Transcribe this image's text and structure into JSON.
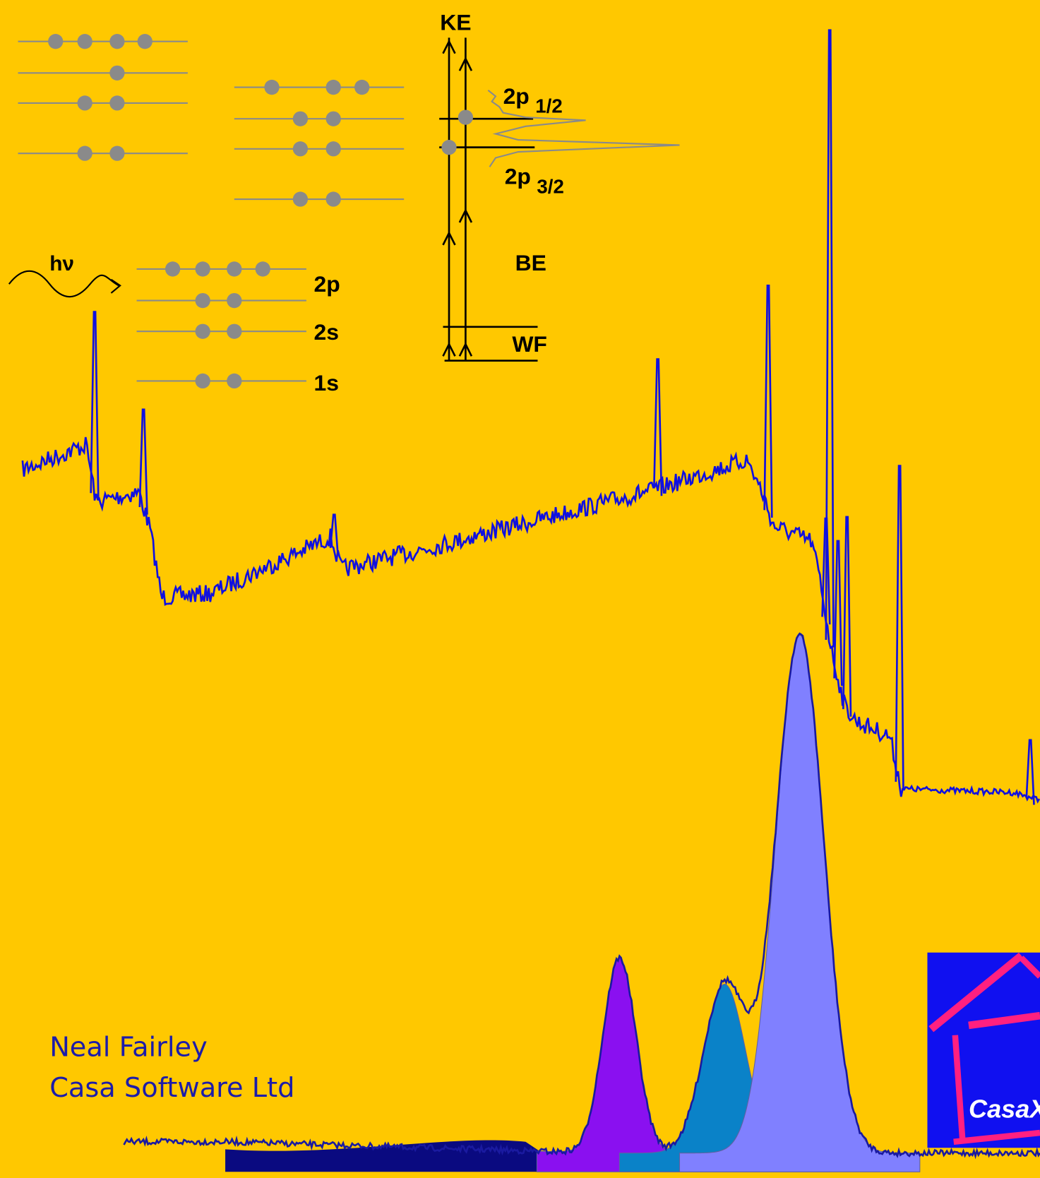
{
  "energy_diagram": {
    "axis_label": "KE",
    "levels": [
      {
        "orbital": "2p",
        "subscript": "1/2"
      },
      {
        "orbital": "2p",
        "subscript": "3/2"
      }
    ],
    "binding_energy": "BE",
    "work_function": "WF"
  },
  "photon": "hν",
  "orbitals": [
    "2p",
    "2s",
    "1s"
  ],
  "author": {
    "name": "Neal Fairley",
    "company": "Casa Software Ltd"
  },
  "logo": "CasaX"
}
